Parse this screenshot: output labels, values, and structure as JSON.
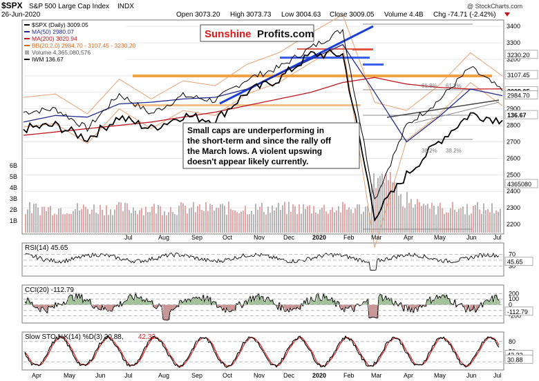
{
  "header": {
    "symbol": "$SPX",
    "name": "S&P 500 Large Cap Index",
    "exchange": "INDX",
    "date": "26-Jun-2020",
    "brand": "@ StockCharts.com",
    "open": "Open 3073.20",
    "high": "High 3073.73",
    "low": "Low 3004.63",
    "close": "Close 3009.05",
    "volume": "Volume 4.4B",
    "change": "Chg -74.71 (-2.42%)",
    "change_icon": "down-triangle-icon"
  },
  "watermark": {
    "part1": "Sunshine",
    "part2": "Profits.com"
  },
  "legend": [
    {
      "text": "$SPX (Daily) 3009.05",
      "color": "#000000"
    },
    {
      "text": "MA(50) 2980.07",
      "color": "#1f2a8c"
    },
    {
      "text": "MA(200) 3020.94",
      "color": "#c0141c"
    },
    {
      "text": "BB(20,2.0) 2984.70 - 3107.45 - 3230.20",
      "color": "#d4691a"
    },
    {
      "text": "Volume 4,365,080,576",
      "color": "#555555"
    },
    {
      "text": "IWM 136.67",
      "color": "#000000"
    }
  ],
  "annotation": {
    "line1": "Small caps are underperforming in",
    "line2": "the short-term and since the rally off",
    "line3": "the March lows. A violent upswing",
    "line4": "doesn't appear likely currently."
  },
  "fib_labels": [
    "61.8%",
    "38.2%",
    "61.8%",
    "38.2%"
  ],
  "price_axis": {
    "ticks": [
      "3400",
      "3300",
      "3200",
      "3100",
      "3000",
      "2900",
      "2800",
      "2700",
      "2600",
      "2500",
      "2400",
      "2300",
      "2200"
    ],
    "tags": [
      "3230.20",
      "3107.45",
      "3009.05",
      "2984.70",
      "136.67"
    ],
    "ylim": [
      2150,
      3430
    ]
  },
  "volume_axis": {
    "ticks": [
      "6B",
      "5B",
      "4B",
      "3B",
      "2B",
      "1B"
    ],
    "tag": "4365080"
  },
  "months_top": [
    "Jul",
    "Aug",
    "Sep",
    "Oct",
    "Nov",
    "Dec",
    "2020",
    "Feb",
    "Mar",
    "Apr",
    "May",
    "Jun",
    "Jul"
  ],
  "months_bottom": [
    "Apr",
    "May",
    "Jun",
    "Jul",
    "Aug",
    "Sep",
    "Oct",
    "Nov",
    "Dec",
    "2020",
    "Feb",
    "Mar",
    "Apr",
    "May",
    "Jun",
    "Jul"
  ],
  "rsi": {
    "title": "RSI(14) 45.65",
    "ticks": [
      "70",
      "50",
      "30"
    ],
    "tag": "45.65"
  },
  "cci": {
    "title": "CCI(20) -112.79",
    "ticks": [
      "200",
      "100",
      "0",
      "-100",
      "-200"
    ],
    "tag": "-112.79"
  },
  "sto": {
    "title": "Slow STO %K(14) %D(3) 30.88,",
    "title_d": "42.32",
    "ticks": [
      "80",
      "50",
      "20"
    ],
    "tags": [
      "42.32",
      "30.88"
    ]
  },
  "chart_data": {
    "type": "line",
    "title": "$SPX S&P 500 Large Cap Index INDX",
    "x": [
      "Apr 2019",
      "May",
      "Jun",
      "Jul",
      "Aug",
      "Sep",
      "Oct",
      "Nov",
      "Dec",
      "Jan 2020",
      "Feb",
      "Mar",
      "Apr",
      "May",
      "Jun",
      "Jun 26"
    ],
    "series": [
      {
        "name": "$SPX (Daily)",
        "values": [
          2880,
          2900,
          2780,
          2990,
          2870,
          2980,
          2950,
          3080,
          3150,
          3270,
          3380,
          2350,
          2800,
          2950,
          3150,
          3009
        ]
      },
      {
        "name": "MA(50)",
        "values": [
          2820,
          2860,
          2850,
          2930,
          2940,
          2960,
          2970,
          3020,
          3110,
          3200,
          3290,
          3000,
          2700,
          2850,
          3020,
          2980
        ]
      },
      {
        "name": "MA(200)",
        "values": [
          2740,
          2760,
          2780,
          2800,
          2820,
          2850,
          2880,
          2920,
          2960,
          3000,
          3060,
          3090,
          3050,
          3030,
          3020,
          3021
        ]
      },
      {
        "name": "IWM",
        "values": [
          2780,
          2800,
          2720,
          2850,
          2780,
          2860,
          2830,
          3000,
          3080,
          3230,
          3230,
          2250,
          2500,
          2700,
          2870,
          2830
        ]
      }
    ],
    "ylim": [
      2150,
      3430
    ]
  }
}
